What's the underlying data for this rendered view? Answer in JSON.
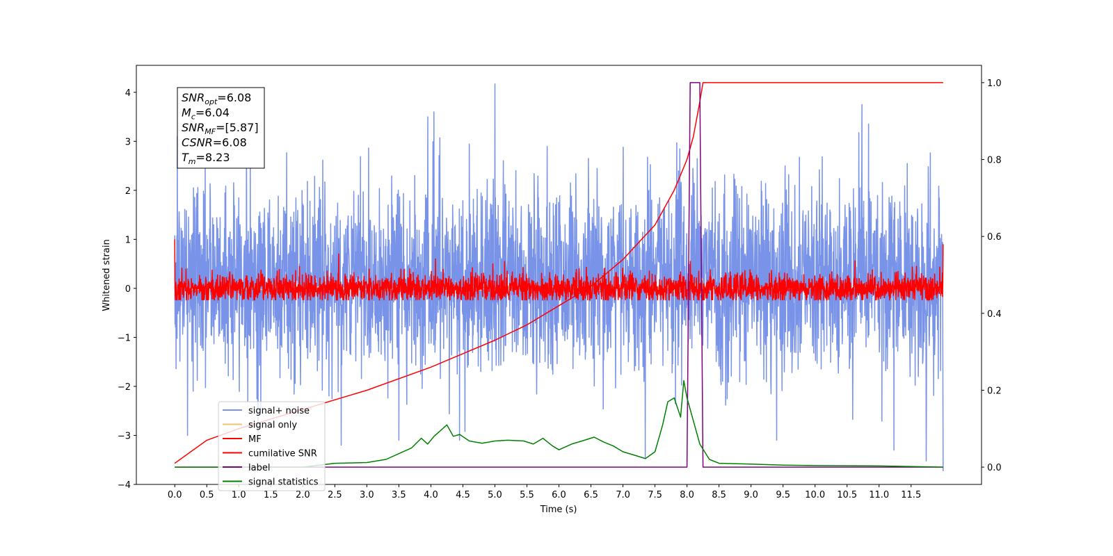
{
  "chart_data": {
    "type": "line",
    "xlabel": "Time (s)",
    "ylabel": "Whitened strain",
    "xlim": [
      -0.6,
      12.6
    ],
    "ylim_left": [
      -4.0,
      4.55
    ],
    "ylim_right": [
      -0.045,
      1.045
    ],
    "x_ticks": [
      0.0,
      0.5,
      1.0,
      1.5,
      2.0,
      2.5,
      3.0,
      3.5,
      4.0,
      4.5,
      5.0,
      5.5,
      6.0,
      6.5,
      7.0,
      7.5,
      8.0,
      8.5,
      9.0,
      9.5,
      10.0,
      10.5,
      11.0,
      11.5
    ],
    "x_tick_labels": [
      "0.0",
      "0.5",
      "1.0",
      "1.5",
      "2.0",
      "2.5",
      "3.0",
      "3.5",
      "4.0",
      "4.5",
      "5.0",
      "5.5",
      "6.0",
      "6.5",
      "7.0",
      "7.5",
      "8.0",
      "8.5",
      "9.0",
      "9.5",
      "10.0",
      "10.5",
      "11.0",
      "11.5"
    ],
    "y_left_ticks": [
      -4,
      -3,
      -2,
      -1,
      0,
      1,
      2,
      3,
      4
    ],
    "y_left_tick_labels": [
      "−4",
      "−3",
      "−2",
      "−1",
      "0",
      "1",
      "2",
      "3",
      "4"
    ],
    "y_right_ticks": [
      0.0,
      0.2,
      0.4,
      0.6,
      0.8,
      1.0
    ],
    "y_right_tick_labels": [
      "0.0",
      "0.2",
      "0.4",
      "0.6",
      "0.8",
      "1.0"
    ],
    "grid": false,
    "legend_placement": "lower-left",
    "annotation": [
      {
        "main": "SNR",
        "sub": "opt",
        "value": "=6.08"
      },
      {
        "main": "M",
        "sub": "c",
        "value": "=6.04"
      },
      {
        "main": "SNR",
        "sub": "MF",
        "value": "=[5.87]"
      },
      {
        "main": "CSNR",
        "sub": "",
        "value": "=6.08"
      },
      {
        "main": "T",
        "sub": "m",
        "value": "=8.23"
      }
    ],
    "series": [
      {
        "name": "signal+ noise",
        "axis": "left",
        "color": "#7893e8",
        "kind": "noise",
        "x_range": [
          0.0,
          12.0
        ],
        "band_center": 0.2,
        "band_sigma": 0.95,
        "spikes": [
          [
            0.04,
            3.1
          ],
          [
            5.0,
            4.17
          ],
          [
            4.05,
            3.6
          ],
          [
            3.95,
            3.5
          ],
          [
            10.73,
            3.75
          ],
          [
            1.3,
            -3.15
          ],
          [
            4.45,
            -3.1
          ],
          [
            7.35,
            -3.45
          ],
          [
            11.23,
            -3.3
          ],
          [
            9.4,
            -3.1
          ],
          [
            2.6,
            -3.2
          ],
          [
            3.5,
            -3.1
          ],
          [
            0.2,
            -3.0
          ]
        ]
      },
      {
        "name": "signal only",
        "axis": "left",
        "color": "#f5c26b",
        "kind": "chirp",
        "x_range": [
          0.0,
          12.0
        ],
        "merger_time": 8.23
      },
      {
        "name": "MF",
        "axis": "left",
        "color": "#ff0000",
        "kind": "noise",
        "x_range": [
          0.0,
          12.0
        ],
        "band_center": 0.0,
        "band_sigma": 0.15,
        "floor": -0.24,
        "spikes": [
          [
            0.0,
            1.0
          ],
          [
            12.0,
            0.9
          ],
          [
            2.56,
            0.7
          ],
          [
            4.07,
            0.6
          ],
          [
            5.15,
            0.55
          ],
          [
            8.05,
            0.55
          ],
          [
            4.97,
            0.5
          ],
          [
            1.95,
            0.45
          ]
        ]
      },
      {
        "name": "cumilative SNR",
        "axis": "right",
        "color": "#ff0000",
        "kind": "curve",
        "points": [
          [
            0.0,
            0.01
          ],
          [
            0.5,
            0.07
          ],
          [
            1.0,
            0.1
          ],
          [
            2.0,
            0.15
          ],
          [
            3.0,
            0.2
          ],
          [
            4.0,
            0.26
          ],
          [
            5.0,
            0.33
          ],
          [
            5.5,
            0.37
          ],
          [
            6.0,
            0.42
          ],
          [
            6.5,
            0.47
          ],
          [
            7.0,
            0.54
          ],
          [
            7.5,
            0.63
          ],
          [
            7.8,
            0.72
          ],
          [
            8.0,
            0.8
          ],
          [
            8.1,
            0.86
          ],
          [
            8.2,
            0.95
          ],
          [
            8.25,
            1.0
          ],
          [
            12.0,
            1.0
          ]
        ]
      },
      {
        "name": "label",
        "axis": "right",
        "color": "#800080",
        "kind": "step",
        "points": [
          [
            0.0,
            0.0
          ],
          [
            8.0,
            0.0
          ],
          [
            8.05,
            1.0
          ],
          [
            8.2,
            1.0
          ],
          [
            8.25,
            0.0
          ],
          [
            12.0,
            0.0
          ]
        ]
      },
      {
        "name": "signal statistics",
        "axis": "right",
        "color": "#008000",
        "kind": "curve",
        "points": [
          [
            0.0,
            0.0
          ],
          [
            1.0,
            0.0
          ],
          [
            2.0,
            0.0
          ],
          [
            2.5,
            0.01
          ],
          [
            3.0,
            0.012
          ],
          [
            3.3,
            0.02
          ],
          [
            3.5,
            0.035
          ],
          [
            3.7,
            0.05
          ],
          [
            3.85,
            0.075
          ],
          [
            3.95,
            0.06
          ],
          [
            4.05,
            0.08
          ],
          [
            4.15,
            0.095
          ],
          [
            4.25,
            0.11
          ],
          [
            4.35,
            0.08
          ],
          [
            4.45,
            0.085
          ],
          [
            4.6,
            0.068
          ],
          [
            4.8,
            0.062
          ],
          [
            5.0,
            0.068
          ],
          [
            5.2,
            0.07
          ],
          [
            5.45,
            0.068
          ],
          [
            5.6,
            0.06
          ],
          [
            5.75,
            0.075
          ],
          [
            5.9,
            0.055
          ],
          [
            6.0,
            0.045
          ],
          [
            6.2,
            0.06
          ],
          [
            6.4,
            0.07
          ],
          [
            6.55,
            0.078
          ],
          [
            6.7,
            0.065
          ],
          [
            6.85,
            0.055
          ],
          [
            7.0,
            0.04
          ],
          [
            7.2,
            0.03
          ],
          [
            7.35,
            0.022
          ],
          [
            7.5,
            0.04
          ],
          [
            7.62,
            0.11
          ],
          [
            7.7,
            0.17
          ],
          [
            7.8,
            0.18
          ],
          [
            7.9,
            0.13
          ],
          [
            7.95,
            0.225
          ],
          [
            8.0,
            0.18
          ],
          [
            8.1,
            0.12
          ],
          [
            8.2,
            0.06
          ],
          [
            8.35,
            0.02
          ],
          [
            8.5,
            0.01
          ],
          [
            9.0,
            0.008
          ],
          [
            9.5,
            0.005
          ],
          [
            10.0,
            0.004
          ],
          [
            11.0,
            0.003
          ],
          [
            12.0,
            0.0
          ]
        ]
      }
    ]
  }
}
